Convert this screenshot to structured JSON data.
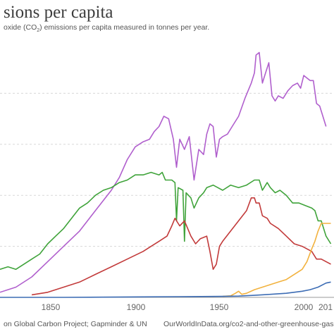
{
  "header": {
    "title": "sions per capita",
    "subtitle_pre": "oxide (CO",
    "subtitle_sub": "2",
    "subtitle_post": ") emissions per capita measured in tonnes per year."
  },
  "footer": {
    "source": "on Global Carbon Project; Gapminder & UN",
    "url": "OurWorldInData.org/co2-and-other-greenhouse-gas-em"
  },
  "colors": {
    "purple": "#b05fcd",
    "green": "#3fa33a",
    "red": "#c23a3a",
    "orange": "#f2b23e",
    "blue": "#3c6cb4",
    "grid": "#d7d7d7"
  },
  "chart_data": {
    "type": "line",
    "title": "sions per capita",
    "xlabel": "",
    "ylabel": "",
    "x_ticks": [
      "1850",
      "1900",
      "1950",
      "2000",
      "201"
    ],
    "xlim": [
      1810,
      2020
    ],
    "ylim": [
      0,
      5
    ],
    "grid": "horizontal dotted",
    "legend": "none",
    "series": [
      {
        "color": "purple",
        "points": [
          [
            1810,
            0.1
          ],
          [
            1820,
            0.2
          ],
          [
            1830,
            0.4
          ],
          [
            1840,
            0.7
          ],
          [
            1850,
            1.0
          ],
          [
            1860,
            1.3
          ],
          [
            1870,
            1.7
          ],
          [
            1880,
            2.1
          ],
          [
            1885,
            2.35
          ],
          [
            1890,
            2.7
          ],
          [
            1895,
            2.95
          ],
          [
            1900,
            3.05
          ],
          [
            1904,
            3.1
          ],
          [
            1907,
            3.25
          ],
          [
            1910,
            3.35
          ],
          [
            1913,
            3.55
          ],
          [
            1916,
            3.5
          ],
          [
            1919,
            3.1
          ],
          [
            1921,
            2.55
          ],
          [
            1923,
            3.1
          ],
          [
            1926,
            2.9
          ],
          [
            1929,
            3.15
          ],
          [
            1932,
            2.3
          ],
          [
            1935,
            2.9
          ],
          [
            1938,
            2.8
          ],
          [
            1940,
            3.2
          ],
          [
            1942,
            3.4
          ],
          [
            1944,
            3.35
          ],
          [
            1946,
            2.75
          ],
          [
            1948,
            3.1
          ],
          [
            1950,
            3.15
          ],
          [
            1953,
            3.2
          ],
          [
            1956,
            3.35
          ],
          [
            1960,
            3.55
          ],
          [
            1964,
            3.9
          ],
          [
            1968,
            4.2
          ],
          [
            1970,
            4.4
          ],
          [
            1971,
            4.75
          ],
          [
            1973,
            4.8
          ],
          [
            1975,
            4.2
          ],
          [
            1977,
            4.4
          ],
          [
            1979,
            4.6
          ],
          [
            1981,
            3.95
          ],
          [
            1983,
            3.85
          ],
          [
            1985,
            3.95
          ],
          [
            1988,
            3.9
          ],
          [
            1991,
            4.05
          ],
          [
            1994,
            4.15
          ],
          [
            1997,
            4.2
          ],
          [
            1999,
            4.1
          ],
          [
            2001,
            4.35
          ],
          [
            2003,
            4.3
          ],
          [
            2005,
            4.25
          ],
          [
            2007,
            4.25
          ],
          [
            2009,
            3.8
          ],
          [
            2011,
            3.75
          ],
          [
            2013,
            3.55
          ],
          [
            2015,
            3.35
          ]
        ]
      },
      {
        "color": "green",
        "points": [
          [
            1810,
            0.55
          ],
          [
            1815,
            0.6
          ],
          [
            1820,
            0.55
          ],
          [
            1825,
            0.65
          ],
          [
            1830,
            0.75
          ],
          [
            1835,
            0.85
          ],
          [
            1840,
            1.05
          ],
          [
            1845,
            1.2
          ],
          [
            1850,
            1.35
          ],
          [
            1855,
            1.55
          ],
          [
            1860,
            1.75
          ],
          [
            1865,
            1.85
          ],
          [
            1870,
            2.0
          ],
          [
            1875,
            2.1
          ],
          [
            1880,
            2.15
          ],
          [
            1885,
            2.25
          ],
          [
            1890,
            2.3
          ],
          [
            1895,
            2.4
          ],
          [
            1900,
            2.4
          ],
          [
            1905,
            2.45
          ],
          [
            1910,
            2.4
          ],
          [
            1912,
            2.45
          ],
          [
            1914,
            2.3
          ],
          [
            1918,
            2.3
          ],
          [
            1920,
            2.25
          ],
          [
            1921,
            1.5
          ],
          [
            1922,
            2.15
          ],
          [
            1925,
            2.1
          ],
          [
            1926,
            1.1
          ],
          [
            1927,
            2.05
          ],
          [
            1930,
            1.95
          ],
          [
            1932,
            1.75
          ],
          [
            1935,
            1.95
          ],
          [
            1938,
            2.05
          ],
          [
            1940,
            2.15
          ],
          [
            1944,
            2.2
          ],
          [
            1947,
            2.15
          ],
          [
            1950,
            2.1
          ],
          [
            1955,
            2.2
          ],
          [
            1960,
            2.15
          ],
          [
            1965,
            2.2
          ],
          [
            1970,
            2.3
          ],
          [
            1973,
            2.3
          ],
          [
            1975,
            2.1
          ],
          [
            1978,
            2.25
          ],
          [
            1980,
            2.15
          ],
          [
            1983,
            2.05
          ],
          [
            1986,
            2.1
          ],
          [
            1990,
            2.0
          ],
          [
            1994,
            1.85
          ],
          [
            1998,
            1.85
          ],
          [
            2002,
            1.8
          ],
          [
            2006,
            1.75
          ],
          [
            2008,
            1.7
          ],
          [
            2010,
            1.5
          ],
          [
            2012,
            1.5
          ],
          [
            2015,
            1.2
          ],
          [
            2018,
            1.05
          ]
        ]
      },
      {
        "color": "red",
        "points": [
          [
            1830,
            0.05
          ],
          [
            1840,
            0.1
          ],
          [
            1850,
            0.2
          ],
          [
            1860,
            0.3
          ],
          [
            1870,
            0.45
          ],
          [
            1880,
            0.6
          ],
          [
            1890,
            0.75
          ],
          [
            1900,
            0.9
          ],
          [
            1905,
            1.0
          ],
          [
            1910,
            1.1
          ],
          [
            1915,
            1.2
          ],
          [
            1918,
            1.4
          ],
          [
            1920,
            1.55
          ],
          [
            1923,
            1.4
          ],
          [
            1926,
            1.5
          ],
          [
            1930,
            1.2
          ],
          [
            1933,
            1.05
          ],
          [
            1936,
            1.15
          ],
          [
            1940,
            1.2
          ],
          [
            1942,
            0.9
          ],
          [
            1944,
            0.55
          ],
          [
            1946,
            0.65
          ],
          [
            1948,
            1.0
          ],
          [
            1950,
            1.1
          ],
          [
            1955,
            1.3
          ],
          [
            1960,
            1.5
          ],
          [
            1965,
            1.7
          ],
          [
            1968,
            1.95
          ],
          [
            1970,
            1.95
          ],
          [
            1971,
            1.85
          ],
          [
            1973,
            1.85
          ],
          [
            1975,
            1.6
          ],
          [
            1978,
            1.55
          ],
          [
            1980,
            1.45
          ],
          [
            1985,
            1.35
          ],
          [
            1990,
            1.2
          ],
          [
            1995,
            1.05
          ],
          [
            2000,
            1.0
          ],
          [
            2003,
            0.95
          ],
          [
            2006,
            0.9
          ],
          [
            2009,
            0.75
          ],
          [
            2012,
            0.75
          ],
          [
            2015,
            0.7
          ],
          [
            2018,
            0.65
          ]
        ]
      },
      {
        "color": "orange",
        "points": [
          [
            1950,
            0.02
          ],
          [
            1955,
            0.03
          ],
          [
            1958,
            0.08
          ],
          [
            1960,
            0.12
          ],
          [
            1962,
            0.06
          ],
          [
            1965,
            0.08
          ],
          [
            1970,
            0.15
          ],
          [
            1975,
            0.2
          ],
          [
            1980,
            0.25
          ],
          [
            1985,
            0.3
          ],
          [
            1990,
            0.35
          ],
          [
            1995,
            0.45
          ],
          [
            2000,
            0.55
          ],
          [
            2003,
            0.7
          ],
          [
            2006,
            0.95
          ],
          [
            2008,
            1.1
          ],
          [
            2010,
            1.3
          ],
          [
            2012,
            1.45
          ],
          [
            2014,
            1.45
          ],
          [
            2016,
            1.45
          ],
          [
            2018,
            1.45
          ]
        ]
      },
      {
        "color": "blue",
        "points": [
          [
            1810,
            0.0
          ],
          [
            1850,
            0.0
          ],
          [
            1900,
            0.01
          ],
          [
            1930,
            0.015
          ],
          [
            1950,
            0.02
          ],
          [
            1960,
            0.025
          ],
          [
            1970,
            0.04
          ],
          [
            1980,
            0.06
          ],
          [
            1990,
            0.08
          ],
          [
            2000,
            0.12
          ],
          [
            2005,
            0.15
          ],
          [
            2010,
            0.2
          ],
          [
            2015,
            0.28
          ],
          [
            2018,
            0.3
          ]
        ]
      }
    ]
  }
}
